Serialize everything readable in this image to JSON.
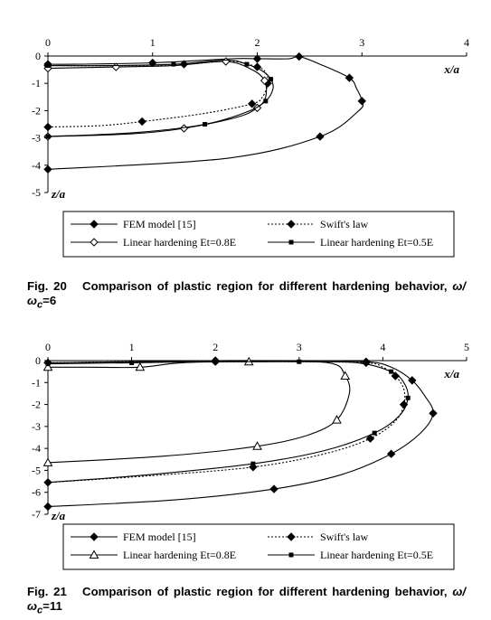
{
  "chart_data": [
    {
      "type": "line",
      "title": "",
      "xlabel": "x/a",
      "ylabel": "z/a",
      "xlim": [
        0,
        4
      ],
      "ylim": [
        -5,
        0
      ],
      "xticks": [
        "0",
        "1",
        "2",
        "3",
        "4"
      ],
      "yticks": [
        "0",
        "-1",
        "-2",
        "-3",
        "-4",
        "-5"
      ],
      "grid": false,
      "legend_position": "bottom",
      "series": [
        {
          "name": "FEM model [15]",
          "marker": "diamond-filled",
          "line": "solid",
          "x": [
            0,
            1.7,
            2.6,
            2.97,
            3.0,
            2.95,
            2.88,
            2.6,
            2.4,
            2.3,
            2.0,
            1.75,
            1.0,
            0.25,
            0
          ],
          "y": [
            -4.15,
            -3.75,
            -2.95,
            -2.0,
            -1.65,
            -1.2,
            -0.8,
            -0.3,
            -0.02,
            -0.1,
            -0.1,
            -0.1,
            -0.25,
            -0.3,
            -0.3
          ]
        },
        {
          "name": "Swift's law",
          "marker": "diamond-filled",
          "line": "dotted",
          "x": [
            0,
            0.5,
            0.9,
            1.5,
            1.95,
            2.05,
            2.1,
            2.08,
            2.0,
            1.75,
            1.3,
            0.8,
            0
          ],
          "y": [
            -2.6,
            -2.55,
            -2.4,
            -2.1,
            -1.75,
            -1.5,
            -1.0,
            -0.6,
            -0.4,
            -0.2,
            -0.3,
            -0.35,
            -0.35
          ]
        },
        {
          "name": "Linear hardening Et=0.8E",
          "marker": "diamond-open",
          "line": "solid",
          "x": [
            0,
            0.8,
            1.3,
            1.8,
            2.0,
            2.08,
            2.07,
            1.95,
            1.7,
            1.2,
            0.65,
            0
          ],
          "y": [
            -2.95,
            -2.85,
            -2.65,
            -2.25,
            -1.9,
            -1.5,
            -0.9,
            -0.5,
            -0.2,
            -0.35,
            -0.4,
            -0.45
          ]
        },
        {
          "name": "Linear hardening Et=0.5E",
          "marker": "square-filled",
          "line": "solid",
          "x": [
            0,
            0.85,
            1.5,
            1.9,
            2.08,
            2.15,
            2.13,
            2.05,
            1.9,
            1.7,
            1.2,
            0.6,
            0
          ],
          "y": [
            -2.95,
            -2.8,
            -2.5,
            -2.05,
            -1.65,
            -1.2,
            -0.85,
            -0.55,
            -0.3,
            -0.15,
            -0.3,
            -0.35,
            -0.35
          ]
        }
      ]
    },
    {
      "type": "line",
      "title": "",
      "xlabel": "x/a",
      "ylabel": "z/a",
      "xlim": [
        0,
        5
      ],
      "ylim": [
        -7,
        0
      ],
      "xticks": [
        "0",
        "1",
        "2",
        "3",
        "4",
        "5"
      ],
      "yticks": [
        "0",
        "-1",
        "-2",
        "-3",
        "-4",
        "-5",
        "-6",
        "-7"
      ],
      "grid": false,
      "legend_position": "bottom",
      "series": [
        {
          "name": "FEM model [15]",
          "marker": "diamond-filled",
          "line": "solid",
          "x": [
            0,
            1.5,
            2.7,
            3.5,
            4.1,
            4.45,
            4.6,
            4.5,
            4.35,
            4.1,
            3.8,
            3.0,
            2.0,
            1.0,
            0
          ],
          "y": [
            -6.65,
            -6.35,
            -5.85,
            -5.2,
            -4.25,
            -3.3,
            -2.4,
            -1.6,
            -0.9,
            -0.3,
            -0.05,
            0,
            0,
            -0.05,
            -0.1
          ]
        },
        {
          "name": "Swift's law",
          "marker": "diamond-filled",
          "line": "dotted",
          "x": [
            0,
            1.2,
            2.45,
            3.3,
            3.85,
            4.15,
            4.25,
            4.25,
            4.15,
            4.0,
            3.8,
            3.0,
            2.0,
            1.0,
            0
          ],
          "y": [
            -5.55,
            -5.25,
            -4.85,
            -4.25,
            -3.55,
            -2.75,
            -2.0,
            -1.3,
            -0.7,
            -0.3,
            -0.1,
            -0.05,
            -0.05,
            -0.05,
            -0.1
          ]
        },
        {
          "name": "Linear hardening Et=0.8E",
          "marker": "triangle-open",
          "line": "solid",
          "x": [
            0,
            1.4,
            2.5,
            3.1,
            3.45,
            3.6,
            3.55,
            3.35,
            2.4,
            1.6,
            1.1,
            0.5,
            0
          ],
          "y": [
            -4.65,
            -4.35,
            -3.9,
            -3.4,
            -2.7,
            -1.5,
            -0.7,
            -0.1,
            -0.05,
            -0.1,
            -0.3,
            -0.3,
            -0.3
          ]
        },
        {
          "name": "Linear hardening Et=0.5E",
          "marker": "square-filled",
          "line": "solid",
          "x": [
            0,
            1.2,
            2.45,
            3.3,
            3.9,
            4.2,
            4.3,
            4.25,
            4.1,
            3.7,
            3.0,
            1.9,
            1.0,
            0
          ],
          "y": [
            -5.55,
            -5.2,
            -4.7,
            -4.1,
            -3.3,
            -2.5,
            -1.7,
            -1.0,
            -0.5,
            -0.1,
            -0.05,
            -0.05,
            -0.1,
            -0.15
          ]
        }
      ]
    }
  ],
  "captions": [
    {
      "figure_label": "Fig. 20",
      "text": "Comparison of plastic region for different hardening behavior, ",
      "ratio": "ω/ω",
      "ratio_sub": "c",
      "ratio_value": "=6"
    },
    {
      "figure_label": "Fig. 21",
      "text": "Comparison of plastic region for different hardening behavior, ",
      "ratio": "ω/ω",
      "ratio_sub": "c",
      "ratio_value": "=11"
    }
  ]
}
